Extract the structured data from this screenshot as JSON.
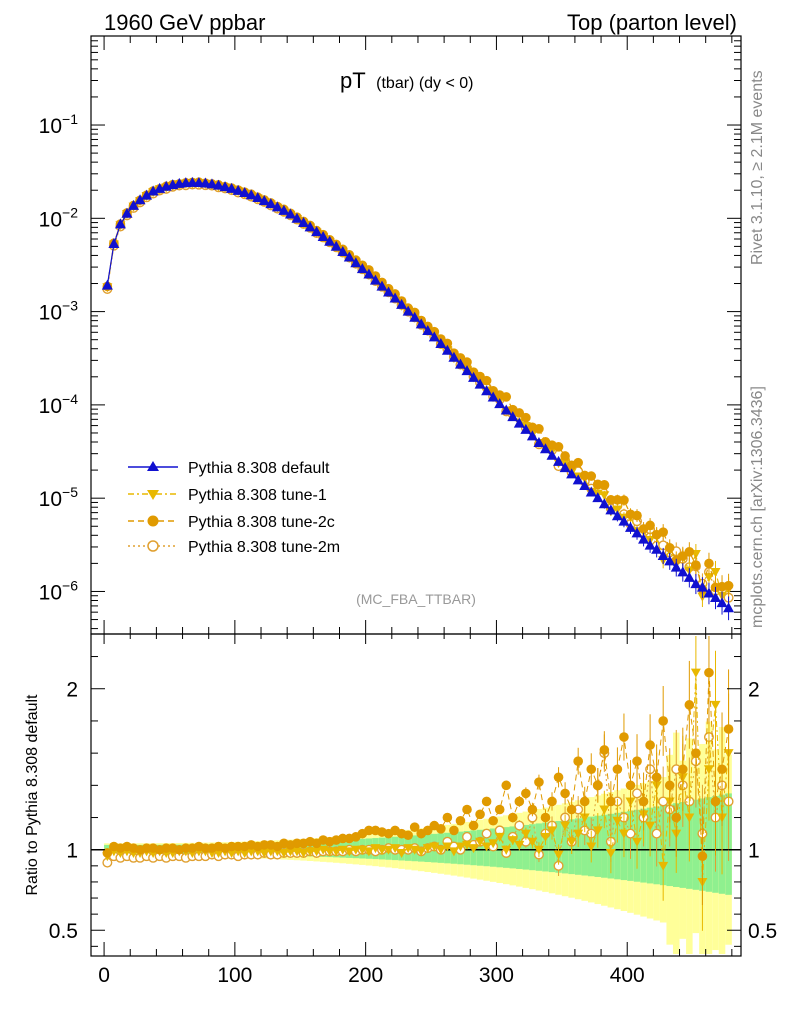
{
  "header": {
    "left": "1960 GeV ppbar",
    "right": "Top (parton level)"
  },
  "side_labels": {
    "rivet": "Rivet 3.1.10, ≥ 2.1M events",
    "mcplots": "mcplots.cern.ch [arXiv:1306.3436]"
  },
  "watermark": "(MC_FBA_TTBAR)",
  "colors": {
    "default": "#1010d0",
    "tune1": "#e8b800",
    "tune2c": "#e09a00",
    "tune2m": "#e0a030",
    "band_green": "#8ff08f",
    "band_yellow": "#ffff99"
  },
  "chart_data": [
    {
      "type": "scatter",
      "title": "pT (tbar) (dy < 0)",
      "title_main": "pT",
      "title_sub": "(tbar) (dy < 0)",
      "xlabel": "",
      "ylabel": "",
      "yscale": "log",
      "xlim": [
        -10,
        487
      ],
      "ylim": [
        3.5e-07,
        0.9
      ],
      "ytick_base": "10",
      "ytick_exponents": [
        "−6",
        "−5",
        "−4",
        "−3",
        "−2",
        "−1"
      ],
      "legend_placement": "bottom-left",
      "x": [
        2.5,
        7.5,
        12.5,
        17.5,
        22.5,
        27.5,
        32.5,
        37.5,
        42.5,
        47.5,
        52.5,
        57.5,
        62.5,
        67.5,
        72.5,
        77.5,
        82.5,
        87.5,
        92.5,
        97.5,
        102.5,
        107.5,
        112.5,
        117.5,
        122.5,
        127.5,
        132.5,
        137.5,
        142.5,
        147.5,
        152.5,
        157.5,
        162.5,
        167.5,
        172.5,
        177.5,
        182.5,
        187.5,
        192.5,
        197.5,
        202.5,
        207.5,
        212.5,
        217.5,
        222.5,
        227.5,
        232.5,
        237.5,
        242.5,
        247.5,
        252.5,
        257.5,
        262.5,
        267.5,
        272.5,
        277.5,
        282.5,
        287.5,
        292.5,
        297.5,
        302.5,
        307.5,
        312.5,
        317.5,
        322.5,
        327.5,
        332.5,
        337.5,
        342.5,
        347.5,
        352.5,
        357.5,
        362.5,
        367.5,
        372.5,
        377.5,
        382.5,
        387.5,
        392.5,
        397.5,
        402.5,
        407.5,
        412.5,
        417.5,
        422.5,
        427.5,
        432.5,
        437.5,
        442.5,
        447.5,
        452.5,
        457.5,
        462.5,
        467.5,
        472.5,
        477.5
      ],
      "series": [
        {
          "name": "Pythia 8.308 default",
          "marker": "triangle-up",
          "values": [
            0.0019,
            0.0053,
            0.0086,
            0.0112,
            0.0136,
            0.0156,
            0.0175,
            0.0194,
            0.0207,
            0.0218,
            0.0227,
            0.0234,
            0.0238,
            0.024,
            0.0239,
            0.0236,
            0.0231,
            0.0224,
            0.0216,
            0.0207,
            0.0197,
            0.0187,
            0.0176,
            0.0165,
            0.0153,
            0.0142,
            0.0131,
            0.012,
            0.011,
            0.0099,
            0.0089,
            0.008,
            0.0071,
            0.0063,
            0.0056,
            0.00495,
            0.00435,
            0.0038,
            0.0033,
            0.00285,
            0.0025,
            0.00215,
            0.00185,
            0.0016,
            0.00138,
            0.00118,
            0.001,
            0.00086,
            0.00073,
            0.00062,
            0.00053,
            0.00045,
            0.00038,
            0.00032,
            0.00027,
            0.00023,
            0.000195,
            0.000165,
            0.00014,
            0.00012,
            0.000102,
            8.7e-05,
            7.4e-05,
            6.3e-05,
            5.4e-05,
            4.6e-05,
            3.9e-05,
            3.35e-05,
            2.85e-05,
            2.45e-05,
            2.1e-05,
            1.8e-05,
            1.55e-05,
            1.35e-05,
            1.15e-05,
            1e-05,
            8.6e-06,
            7.4e-06,
            6.4e-06,
            5.6e-06,
            4.8e-06,
            4.2e-06,
            3.6e-06,
            3.1e-06,
            2.8e-06,
            2.4e-06,
            2.1e-06,
            1.8e-06,
            1.6e-06,
            1.4e-06,
            1.2e-06,
            1.1e-06,
            9.5e-07,
            8.5e-07,
            7.5e-07,
            6.6e-07
          ]
        },
        {
          "name": "Pythia 8.308 tune-1",
          "marker": "triangle-down",
          "ratio": [
            0.96,
            0.99,
            0.98,
            0.99,
            0.98,
            0.98,
            0.99,
            0.98,
            0.99,
            0.98,
            0.98,
            0.99,
            0.99,
            0.98,
            0.99,
            0.99,
            0.98,
            0.98,
            0.99,
            0.98,
            0.99,
            0.98,
            0.99,
            0.99,
            0.98,
            0.99,
            0.99,
            0.98,
            0.99,
            0.99,
            0.98,
            0.99,
            0.99,
            1.0,
            0.99,
            0.99,
            1.0,
            0.99,
            1.0,
            1.0,
            0.99,
            1.01,
            1.0,
            1.0,
            1.01,
            0.98,
            1.01,
            1.0,
            0.99,
            1.01,
            1.02,
            1.0,
            1.02,
            0.99,
            1.02,
            1.03,
            1.01,
            1.05,
            1.02,
            1.04,
            1.08,
            1.0,
            1.06,
            1.03,
            1.1,
            1.05,
            1.0,
            1.08,
            1.12,
            0.97,
            1.15,
            1.05,
            1.1,
            1.2,
            1.02,
            1.12,
            1.25,
            0.98,
            1.18,
            1.1,
            1.3,
            1.05,
            1.22,
            1.15,
            1.4,
            0.9,
            1.3,
            1.1,
            1.45,
            1.2,
            2.1,
            0.8,
            1.5,
            1.9,
            1.2,
            1.6
          ]
        },
        {
          "name": "Pythia 8.308 tune-2c",
          "marker": "circle-filled",
          "ratio": [
            0.98,
            1.02,
            1.01,
            1.02,
            1.01,
            1.0,
            1.01,
            1.01,
            1.0,
            1.01,
            1.01,
            1.0,
            1.01,
            1.01,
            1.02,
            1.01,
            1.01,
            1.02,
            1.01,
            1.02,
            1.02,
            1.02,
            1.03,
            1.02,
            1.03,
            1.03,
            1.02,
            1.04,
            1.03,
            1.04,
            1.04,
            1.05,
            1.04,
            1.06,
            1.05,
            1.06,
            1.07,
            1.07,
            1.08,
            1.1,
            1.12,
            1.12,
            1.11,
            1.1,
            1.12,
            1.1,
            1.09,
            1.14,
            1.1,
            1.12,
            1.15,
            1.13,
            1.2,
            1.12,
            1.18,
            1.25,
            1.15,
            1.22,
            1.3,
            1.18,
            1.25,
            1.4,
            1.2,
            1.3,
            1.35,
            1.25,
            1.42,
            1.2,
            1.3,
            1.45,
            1.35,
            1.25,
            1.55,
            1.3,
            1.5,
            1.4,
            1.62,
            1.3,
            1.5,
            1.7,
            1.4,
            1.55,
            1.3,
            1.65,
            1.45,
            1.8,
            1.4,
            1.2,
            1.5,
            1.9,
            1.6,
            0.96,
            2.1,
            1.3,
            1.5,
            1.75
          ]
        },
        {
          "name": "Pythia 8.308 tune-2m",
          "marker": "circle-open",
          "ratio": [
            0.92,
            0.96,
            0.95,
            0.96,
            0.95,
            0.95,
            0.96,
            0.95,
            0.96,
            0.95,
            0.96,
            0.96,
            0.95,
            0.96,
            0.96,
            0.96,
            0.97,
            0.96,
            0.97,
            0.97,
            0.96,
            0.97,
            0.97,
            0.97,
            0.98,
            0.97,
            0.97,
            0.98,
            0.98,
            0.98,
            0.98,
            0.99,
            0.98,
            0.99,
            0.99,
            0.99,
            0.99,
            1.0,
            0.99,
            1.0,
            1.0,
            0.99,
            1.0,
            1.01,
            1.0,
            1.0,
            1.0,
            1.01,
            0.99,
            1.01,
            1.02,
            1.0,
            1.05,
            1.02,
            1.0,
            1.08,
            1.03,
            1.05,
            1.1,
            1.02,
            1.12,
            0.98,
            1.08,
            1.15,
            1.05,
            1.2,
            0.97,
            1.1,
            1.15,
            0.9,
            1.2,
            1.05,
            1.25,
            1.12,
            1.1,
            1.4,
            1.6,
            1.05,
            1.3,
            1.2,
            1.1,
            1.35,
            1.2,
            1.5,
            1.1,
            1.3,
            1.25,
            1.5,
            1.4,
            1.3,
            1.55,
            1.1,
            1.7,
            1.2,
            1.4,
            1.3
          ]
        }
      ]
    },
    {
      "type": "scatter",
      "title": "",
      "xlabel": "",
      "ylabel": "Ratio to Pythia 8.308 default",
      "ylim": [
        0.34,
        2.34
      ],
      "xlim": [
        -10,
        487
      ],
      "yticks": [
        "0.5",
        "1",
        "2"
      ],
      "xticks": [
        "0",
        "100",
        "200",
        "300",
        "400"
      ],
      "reference_line": 1
    }
  ]
}
